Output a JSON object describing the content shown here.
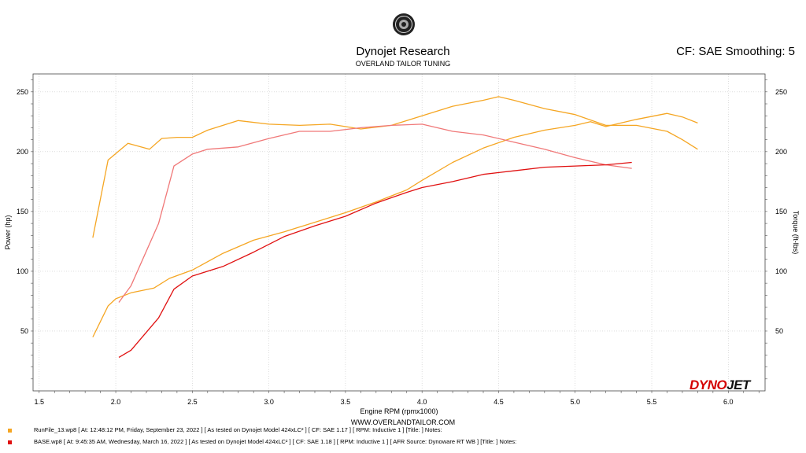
{
  "header": {
    "title": "Dynojet Research",
    "subtitle": "OVERLAND TAILOR TUNING",
    "cf_info": "CF: SAE Smoothing: 5"
  },
  "footer": {
    "url": "WWW.OVERLANDTAILOR.COM",
    "brand_left": "DYNO",
    "brand_right": "JET"
  },
  "legend": [
    {
      "text": "RunFile_13.wp8 [ At: 12:48:12 PM, Friday, September 23, 2022 ] [ As tested on Dynojet Model 424xLC² ] [ CF: SAE 1.17 ] [ RPM: Inductive 1 ] [Title: ]   Notes:",
      "color": "#f5a623"
    },
    {
      "text": "BASE.wp8 [ At: 9:45:35 AM, Wednesday, March 16, 2022 ] [ As tested on Dynojet Model 424xLC² ] [ CF: SAE 1.18 ] [ RPM: Inductive 1 ] [ AFR Source: Dynoware RT WB ] [Title: ]   Notes:",
      "color": "#e01010"
    }
  ],
  "chart_data": {
    "type": "line",
    "xlabel": "Engine RPM (rpmx1000)",
    "ylabel": "Power (hp)",
    "y2label": "Torque (ft-lbs)",
    "xlim": [
      1.46,
      6.24
    ],
    "ylim": [
      0,
      265
    ],
    "y2lim": [
      0,
      265
    ],
    "xticks": [
      "1.5",
      "2.0",
      "2.5",
      "3.0",
      "3.5",
      "4.0",
      "4.5",
      "5.0",
      "5.5",
      "6.0"
    ],
    "yticks": [
      "50",
      "100",
      "150",
      "200",
      "250"
    ],
    "y2ticks": [
      "50",
      "100",
      "150",
      "200",
      "250"
    ],
    "grid": true,
    "series": [
      {
        "run": "RunFile_13",
        "measure": "Torque",
        "color": "#f5a623",
        "x": [
          1.85,
          1.95,
          2.08,
          2.22,
          2.3,
          2.4,
          2.5,
          2.6,
          2.8,
          3.0,
          3.2,
          3.4,
          3.6,
          3.8,
          4.0,
          4.2,
          4.4,
          4.5,
          4.6,
          4.8,
          5.0,
          5.2,
          5.4,
          5.6,
          5.7,
          5.8
        ],
        "y": [
          128,
          193,
          207,
          202,
          211,
          212,
          212,
          218,
          226,
          223,
          222,
          223,
          219,
          222,
          230,
          238,
          243,
          246,
          243,
          236,
          231,
          222,
          222,
          217,
          210,
          202
        ]
      },
      {
        "run": "RunFile_13",
        "measure": "Power",
        "color": "#f5a623",
        "x": [
          1.85,
          1.95,
          2.0,
          2.1,
          2.25,
          2.35,
          2.5,
          2.7,
          2.9,
          3.1,
          3.3,
          3.5,
          3.7,
          3.9,
          4.0,
          4.2,
          4.4,
          4.6,
          4.8,
          5.0,
          5.1,
          5.2,
          5.4,
          5.6,
          5.7,
          5.8
        ],
        "y": [
          45,
          71,
          77,
          82,
          86,
          94,
          101,
          115,
          126,
          133,
          141,
          149,
          158,
          168,
          176,
          191,
          203,
          212,
          218,
          222,
          225,
          221,
          227,
          232,
          229,
          224
        ]
      },
      {
        "run": "BASE",
        "measure": "Torque",
        "color": "#f07878",
        "x": [
          2.02,
          2.1,
          2.28,
          2.38,
          2.5,
          2.6,
          2.8,
          3.0,
          3.2,
          3.4,
          3.6,
          3.8,
          4.0,
          4.2,
          4.4,
          4.6,
          4.8,
          5.0,
          5.2,
          5.37
        ],
        "y": [
          74,
          88,
          140,
          188,
          198,
          202,
          204,
          211,
          217,
          217,
          220,
          222,
          223,
          217,
          214,
          208,
          202,
          195,
          189,
          186
        ]
      },
      {
        "run": "BASE",
        "measure": "Power",
        "color": "#e01010",
        "x": [
          2.02,
          2.1,
          2.28,
          2.38,
          2.5,
          2.7,
          2.9,
          3.1,
          3.3,
          3.5,
          3.7,
          3.9,
          4.0,
          4.2,
          4.4,
          4.6,
          4.8,
          5.0,
          5.2,
          5.37
        ],
        "y": [
          28,
          34,
          61,
          85,
          96,
          104,
          116,
          129,
          138,
          146,
          157,
          166,
          170,
          175,
          181,
          184,
          187,
          188,
          189,
          191
        ]
      }
    ]
  }
}
